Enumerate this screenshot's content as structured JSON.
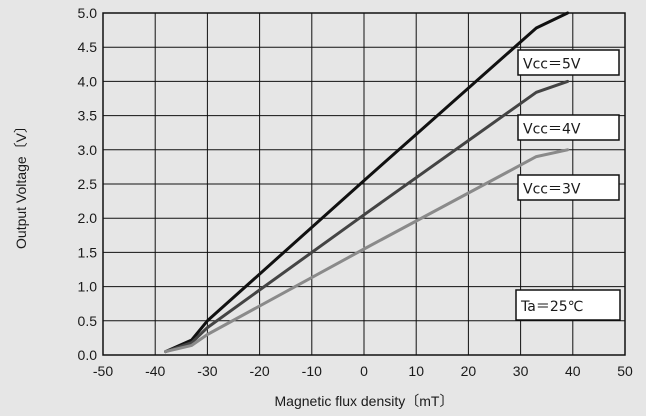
{
  "chart_data": {
    "type": "line",
    "xlabel": "Magnetic flux density〔mT〕",
    "ylabel": "Output Voltage〔V〕",
    "xlim": [
      -50,
      50
    ],
    "ylim": [
      0.0,
      5.0
    ],
    "xticks": [
      "-50",
      "-40",
      "-30",
      "-20",
      "-10",
      "0",
      "10",
      "20",
      "30",
      "40",
      "50"
    ],
    "yticks": [
      "0.0",
      "0.5",
      "1.0",
      "1.5",
      "2.0",
      "2.5",
      "3.0",
      "3.5",
      "4.0",
      "4.5",
      "5.0"
    ],
    "grid": true,
    "series": [
      {
        "name": "Vcc=5V",
        "color": "#111111",
        "points": [
          [
            -38,
            0.05
          ],
          [
            -33,
            0.22
          ],
          [
            -30,
            0.5
          ],
          [
            0,
            2.55
          ],
          [
            33,
            4.78
          ],
          [
            39,
            5.0
          ]
        ]
      },
      {
        "name": "Vcc=4V",
        "color": "#444444",
        "points": [
          [
            -38,
            0.05
          ],
          [
            -33,
            0.18
          ],
          [
            -30,
            0.4
          ],
          [
            0,
            2.05
          ],
          [
            33,
            3.84
          ],
          [
            39,
            4.0
          ]
        ]
      },
      {
        "name": "Vcc=3V",
        "color": "#8a8a8a",
        "points": [
          [
            -38,
            0.05
          ],
          [
            -33,
            0.14
          ],
          [
            -30,
            0.3
          ],
          [
            0,
            1.55
          ],
          [
            33,
            2.9
          ],
          [
            39,
            3.0
          ]
        ]
      }
    ],
    "annotations": [
      {
        "text": "Vcc＝5V",
        "series": 0
      },
      {
        "text": "Vcc＝4V",
        "series": 1
      },
      {
        "text": "Vcc＝3V",
        "series": 2
      },
      {
        "text": "Ta＝25℃",
        "series": null
      }
    ]
  }
}
